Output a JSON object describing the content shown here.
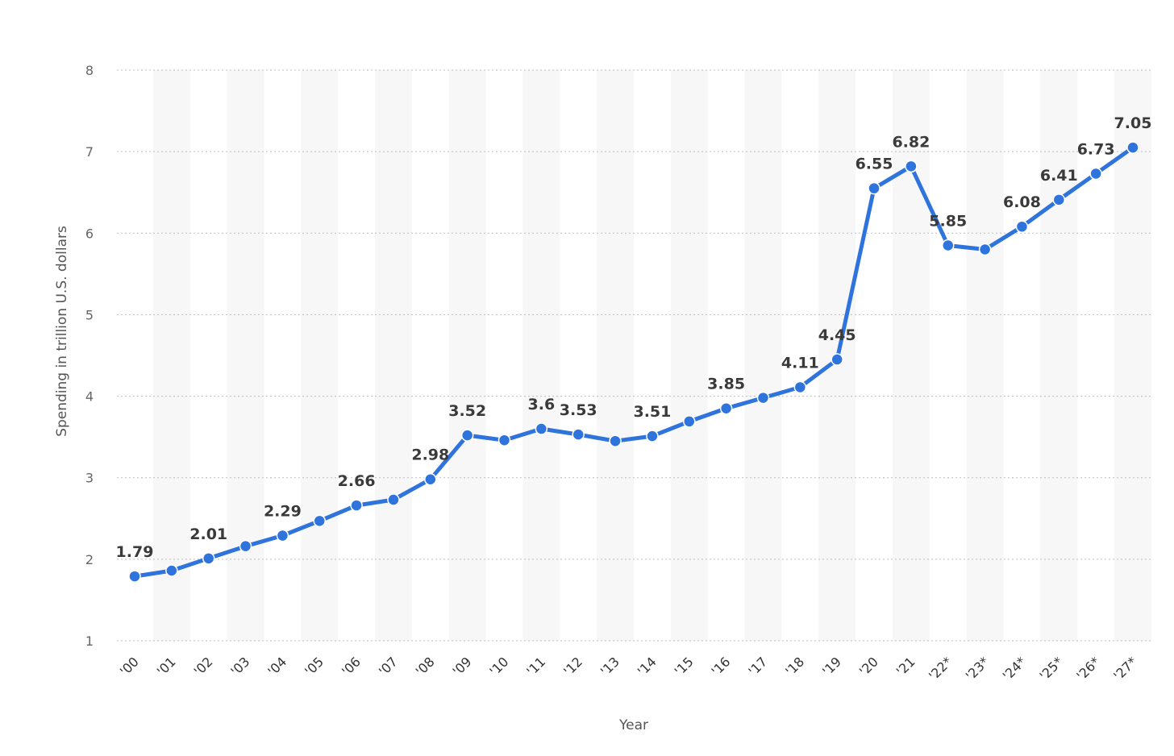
{
  "chart_data": {
    "type": "line",
    "xlabel": "Year",
    "ylabel": "Spending in trillion U.S. dollars",
    "ylim": [
      1,
      8
    ],
    "yticks": [
      1,
      2,
      3,
      4,
      5,
      6,
      7,
      8
    ],
    "grid": true,
    "legend": "none",
    "categories": [
      "'00",
      "'01",
      "'02",
      "'03",
      "'04",
      "'05",
      "'06",
      "'07",
      "'08",
      "'09",
      "'10",
      "'11",
      "'12",
      "'13",
      "'14",
      "'15",
      "'16",
      "'17",
      "'18",
      "'19",
      "'20",
      "'21",
      "'22*",
      "'23*",
      "'24*",
      "'25*",
      "'26*",
      "'27*"
    ],
    "series": [
      {
        "color": "#2f74dc",
        "values": [
          1.79,
          1.86,
          2.01,
          2.16,
          2.29,
          2.47,
          2.66,
          2.73,
          2.98,
          3.52,
          3.46,
          3.6,
          3.53,
          3.45,
          3.51,
          3.69,
          3.85,
          3.98,
          4.11,
          4.45,
          6.55,
          6.82,
          5.85,
          5.8,
          6.08,
          6.41,
          6.73,
          7.05
        ],
        "labels": [
          "1.79",
          "",
          "2.01",
          "",
          "2.29",
          "",
          "2.66",
          "",
          "2.98",
          "3.52",
          "",
          "3.6",
          "3.53",
          "",
          "3.51",
          "",
          "3.85",
          "",
          "4.11",
          "4.45",
          "6.55",
          "6.82",
          "5.85",
          "",
          "6.08",
          "6.41",
          "6.73",
          "7.05"
        ]
      }
    ]
  }
}
